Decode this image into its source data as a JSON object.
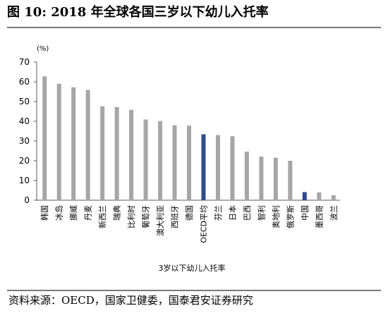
{
  "title": "图 10: 2018 年全球各国三岁以下幼儿入托率",
  "source": "资料来源：OECD，国家卫健委，国泰君安证券研究",
  "chart_data": {
    "type": "bar",
    "unit_label": "(%)",
    "xlabel": "3岁以下幼儿入托率",
    "ylabel": "",
    "ylim": [
      0,
      70
    ],
    "yticks": [
      0,
      10,
      20,
      30,
      40,
      50,
      60,
      70
    ],
    "grid": false,
    "categories": [
      "韩国",
      "冰岛",
      "挪威",
      "丹麦",
      "新西兰",
      "瑞典",
      "比利时",
      "葡萄牙",
      "澳大利亚",
      "西班牙",
      "德国",
      "OECD平均",
      "芬兰",
      "日本",
      "巴西",
      "智利",
      "奥地利",
      "俄罗斯",
      "中国",
      "墨西哥",
      "波兰"
    ],
    "values": [
      62.7,
      59.0,
      57.2,
      55.9,
      47.6,
      47.2,
      45.8,
      40.9,
      40.1,
      38.0,
      37.8,
      33.4,
      33.0,
      32.4,
      24.6,
      22.1,
      21.5,
      20.0,
      4.1,
      4.0,
      2.5
    ],
    "colors": {
      "default": "#a6a6a6",
      "highlight": "#2e4a8b",
      "axis": "#595959"
    },
    "highlight": [
      "OECD平均",
      "中国"
    ]
  }
}
